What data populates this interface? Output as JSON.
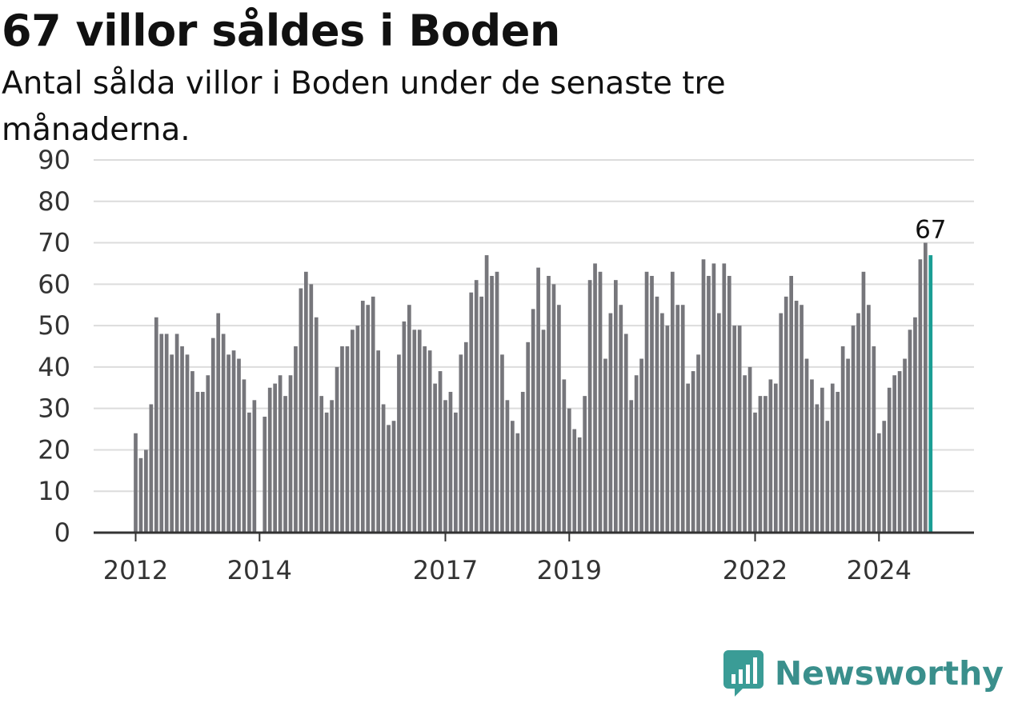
{
  "header": {
    "title": "67 villor såldes i Boden",
    "subtitle": "Antal sålda villor i Boden under de senaste tre månaderna."
  },
  "brand": {
    "name": "Newsworthy",
    "color": "#3a9c96",
    "icon": "newsworthy-logo-icon"
  },
  "colors": {
    "bar": "#76767b",
    "highlight": "#1a9e94",
    "grid": "#dcdcdc",
    "axis": "#333333"
  },
  "chart_data": {
    "type": "bar",
    "ylim": [
      0,
      90
    ],
    "yticks": [
      0,
      10,
      20,
      30,
      40,
      50,
      60,
      70,
      80,
      90
    ],
    "x_start": "2012-01",
    "x_end": "2024-09",
    "xtick_labels": [
      {
        "label": "2012",
        "month": "2012-01"
      },
      {
        "label": "2014",
        "month": "2014-01"
      },
      {
        "label": "2017",
        "month": "2017-01"
      },
      {
        "label": "2019",
        "month": "2019-01"
      },
      {
        "label": "2022",
        "month": "2022-01"
      },
      {
        "label": "2024",
        "month": "2024-01"
      }
    ],
    "grid": true,
    "highlight_label": "67",
    "values": [
      24,
      18,
      20,
      31,
      52,
      48,
      48,
      43,
      48,
      45,
      43,
      39,
      34,
      34,
      38,
      47,
      53,
      48,
      43,
      44,
      42,
      37,
      29,
      32,
      0,
      28,
      35,
      36,
      38,
      33,
      38,
      45,
      59,
      63,
      60,
      52,
      33,
      29,
      32,
      40,
      45,
      45,
      49,
      50,
      56,
      55,
      57,
      44,
      31,
      26,
      27,
      43,
      51,
      55,
      49,
      49,
      45,
      44,
      36,
      39,
      32,
      34,
      29,
      43,
      46,
      58,
      61,
      57,
      67,
      62,
      63,
      43,
      32,
      27,
      24,
      34,
      46,
      54,
      64,
      49,
      62,
      60,
      55,
      37,
      30,
      25,
      23,
      33,
      61,
      65,
      63,
      42,
      53,
      61,
      55,
      48,
      32,
      38,
      42,
      63,
      62,
      57,
      53,
      50,
      63,
      55,
      55,
      36,
      39,
      43,
      66,
      62,
      65,
      53,
      65,
      62,
      50,
      50,
      38,
      40,
      29,
      33,
      33,
      37,
      36,
      53,
      57,
      62,
      56,
      55,
      42,
      37,
      31,
      35,
      27,
      36,
      34,
      45,
      42,
      50,
      53,
      63,
      55,
      45,
      24,
      27,
      35,
      38,
      39,
      42,
      49,
      52,
      66,
      70,
      67
    ]
  }
}
